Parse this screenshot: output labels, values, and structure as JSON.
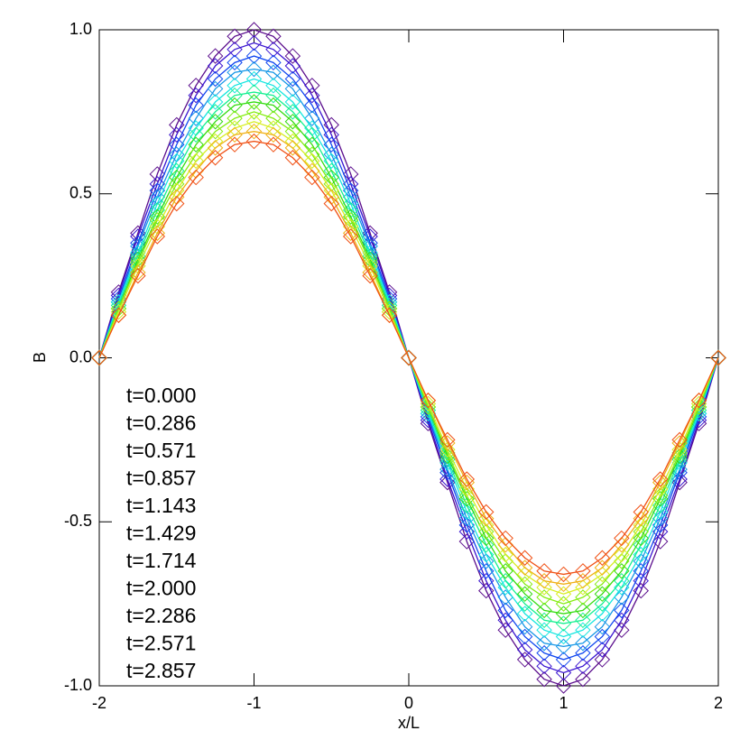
{
  "chart_data": {
    "type": "line",
    "xlabel": "x/L",
    "ylabel": "B",
    "xlim": [
      -2,
      2
    ],
    "ylim": [
      -1,
      1
    ],
    "xticks": [
      -2,
      -1,
      0,
      1,
      2
    ],
    "yticks": [
      {
        "value": -1,
        "label": "-1.0"
      },
      {
        "value": -0.5,
        "label": "-0.5"
      },
      {
        "value": 0,
        "label": "0.0"
      },
      {
        "value": 0.5,
        "label": "0.5"
      },
      {
        "value": 1,
        "label": "1.0"
      }
    ],
    "x": [
      -2,
      -1.875,
      -1.75,
      -1.625,
      -1.5,
      -1.375,
      -1.25,
      -1.125,
      -1,
      -0.875,
      -0.75,
      -0.625,
      -0.5,
      -0.375,
      -0.25,
      -0.125,
      0,
      0.125,
      0.25,
      0.375,
      0.5,
      0.625,
      0.75,
      0.875,
      1,
      1.125,
      1.25,
      1.375,
      1.5,
      1.625,
      1.75,
      1.875,
      2
    ],
    "series": [
      {
        "name": "t=0.000",
        "color": "#5a0c8c",
        "values": [
          0,
          0.2,
          0.38,
          0.56,
          0.71,
          0.83,
          0.92,
          0.98,
          1,
          0.98,
          0.92,
          0.83,
          0.71,
          0.56,
          0.38,
          0.2,
          0,
          -0.2,
          -0.38,
          -0.56,
          -0.71,
          -0.83,
          -0.92,
          -0.98,
          -1,
          -0.98,
          -0.92,
          -0.83,
          -0.71,
          -0.56,
          -0.38,
          -0.2,
          0
        ]
      },
      {
        "name": "t=0.286",
        "color": "#3a14d0",
        "values": [
          0,
          0.19,
          0.37,
          0.53,
          0.68,
          0.8,
          0.89,
          0.94,
          0.96,
          0.94,
          0.89,
          0.8,
          0.68,
          0.53,
          0.37,
          0.19,
          0,
          -0.19,
          -0.37,
          -0.53,
          -0.68,
          -0.8,
          -0.89,
          -0.94,
          -0.96,
          -0.94,
          -0.89,
          -0.8,
          -0.68,
          -0.53,
          -0.37,
          -0.19,
          0
        ]
      },
      {
        "name": "t=0.571",
        "color": "#1046f0",
        "values": [
          0,
          0.18,
          0.35,
          0.51,
          0.65,
          0.77,
          0.85,
          0.9,
          0.92,
          0.9,
          0.85,
          0.77,
          0.65,
          0.51,
          0.35,
          0.18,
          0,
          -0.18,
          -0.35,
          -0.51,
          -0.65,
          -0.77,
          -0.85,
          -0.9,
          -0.92,
          -0.9,
          -0.85,
          -0.77,
          -0.65,
          -0.51,
          -0.35,
          -0.18,
          0
        ]
      },
      {
        "name": "t=0.857",
        "color": "#1496e6",
        "values": [
          0,
          0.17,
          0.34,
          0.49,
          0.62,
          0.73,
          0.82,
          0.87,
          0.88,
          0.87,
          0.82,
          0.73,
          0.62,
          0.49,
          0.34,
          0.17,
          0,
          -0.17,
          -0.34,
          -0.49,
          -0.62,
          -0.73,
          -0.82,
          -0.87,
          -0.88,
          -0.87,
          -0.82,
          -0.73,
          -0.62,
          -0.49,
          -0.34,
          -0.17,
          0
        ]
      },
      {
        "name": "t=1.143",
        "color": "#14e6e0",
        "values": [
          0,
          0.17,
          0.32,
          0.47,
          0.6,
          0.7,
          0.78,
          0.83,
          0.85,
          0.83,
          0.78,
          0.7,
          0.6,
          0.47,
          0.32,
          0.17,
          0,
          -0.17,
          -0.32,
          -0.47,
          -0.6,
          -0.7,
          -0.78,
          -0.83,
          -0.85,
          -0.83,
          -0.78,
          -0.7,
          -0.6,
          -0.47,
          -0.32,
          -0.17,
          0
        ]
      },
      {
        "name": "t=1.429",
        "color": "#14f090",
        "values": [
          0,
          0.16,
          0.31,
          0.45,
          0.57,
          0.68,
          0.75,
          0.8,
          0.81,
          0.8,
          0.75,
          0.68,
          0.57,
          0.45,
          0.31,
          0.16,
          0,
          -0.16,
          -0.31,
          -0.45,
          -0.57,
          -0.68,
          -0.75,
          -0.8,
          -0.81,
          -0.8,
          -0.75,
          -0.68,
          -0.57,
          -0.45,
          -0.31,
          -0.16,
          0
        ]
      },
      {
        "name": "t=1.714",
        "color": "#34dc10",
        "values": [
          0,
          0.15,
          0.3,
          0.43,
          0.55,
          0.65,
          0.72,
          0.77,
          0.78,
          0.77,
          0.72,
          0.65,
          0.55,
          0.43,
          0.3,
          0.15,
          0,
          -0.15,
          -0.3,
          -0.43,
          -0.55,
          -0.65,
          -0.72,
          -0.77,
          -0.78,
          -0.77,
          -0.72,
          -0.65,
          -0.55,
          -0.43,
          -0.3,
          -0.15,
          0
        ]
      },
      {
        "name": "t=2.000",
        "color": "#84ec10",
        "values": [
          0,
          0.15,
          0.29,
          0.42,
          0.53,
          0.62,
          0.69,
          0.73,
          0.75,
          0.73,
          0.69,
          0.62,
          0.53,
          0.42,
          0.29,
          0.15,
          0,
          -0.15,
          -0.29,
          -0.42,
          -0.53,
          -0.62,
          -0.69,
          -0.73,
          -0.75,
          -0.73,
          -0.69,
          -0.62,
          -0.53,
          -0.42,
          -0.29,
          -0.15,
          0
        ]
      },
      {
        "name": "t=2.286",
        "color": "#d6ee20",
        "values": [
          0,
          0.14,
          0.28,
          0.4,
          0.51,
          0.6,
          0.66,
          0.7,
          0.72,
          0.7,
          0.66,
          0.6,
          0.51,
          0.4,
          0.28,
          0.14,
          0,
          -0.14,
          -0.28,
          -0.4,
          -0.51,
          -0.6,
          -0.66,
          -0.7,
          -0.72,
          -0.7,
          -0.66,
          -0.6,
          -0.51,
          -0.4,
          -0.28,
          -0.14,
          0
        ]
      },
      {
        "name": "t=2.571",
        "color": "#f0b014",
        "values": [
          0,
          0.13,
          0.26,
          0.38,
          0.49,
          0.57,
          0.64,
          0.68,
          0.69,
          0.68,
          0.64,
          0.57,
          0.49,
          0.38,
          0.26,
          0.13,
          0,
          -0.13,
          -0.26,
          -0.38,
          -0.49,
          -0.57,
          -0.64,
          -0.68,
          -0.69,
          -0.68,
          -0.64,
          -0.57,
          -0.49,
          -0.38,
          -0.26,
          -0.13,
          0
        ]
      },
      {
        "name": "t=2.857",
        "color": "#f05014",
        "values": [
          0,
          0.13,
          0.25,
          0.37,
          0.47,
          0.55,
          0.61,
          0.65,
          0.66,
          0.65,
          0.61,
          0.55,
          0.47,
          0.37,
          0.25,
          0.13,
          0,
          -0.13,
          -0.25,
          -0.37,
          -0.47,
          -0.55,
          -0.61,
          -0.65,
          -0.66,
          -0.65,
          -0.61,
          -0.55,
          -0.47,
          -0.37,
          -0.25,
          -0.13,
          0
        ]
      }
    ]
  }
}
